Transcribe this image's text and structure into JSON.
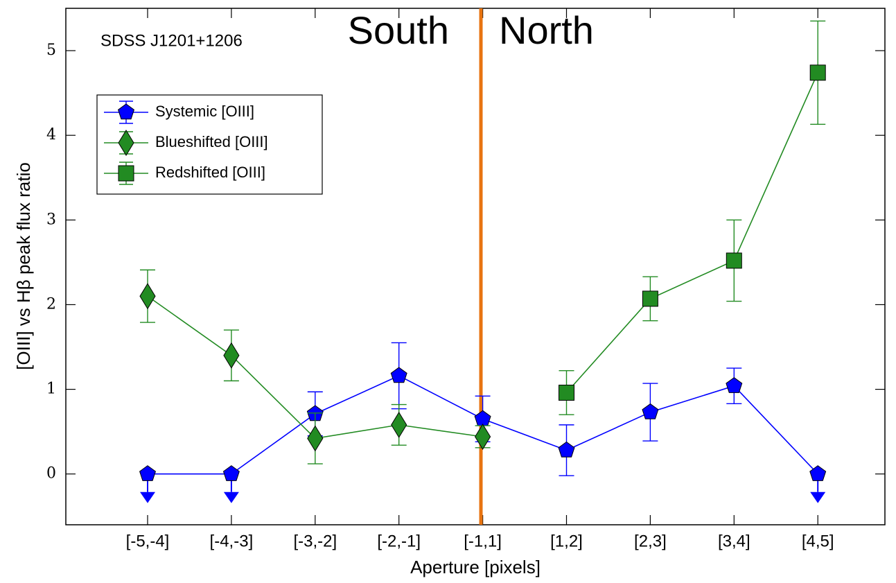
{
  "chart_data": {
    "type": "errorbar-line",
    "annotation": "SDSS J1201+1206",
    "region_labels": [
      "South",
      "North"
    ],
    "xlabel": "Aperture [pixels]",
    "ylabel": "[OIII] vs Hβ peak flux ratio",
    "categories": [
      "[-5,-4]",
      "[-4,-3]",
      "[-3,-2]",
      "[-2,-1]",
      "[-1,1]",
      "[1,2]",
      "[2,3]",
      "[3,4]",
      "[4,5]"
    ],
    "ylim": [
      -0.6,
      5.5
    ],
    "yticks": [
      0,
      1,
      2,
      3,
      4,
      5
    ],
    "divider_color": "#e87410",
    "series": [
      {
        "name": "Systemic [OIII]",
        "color": "#0000ff",
        "marker": "pentagon",
        "values": [
          0,
          0,
          0.71,
          1.16,
          0.65,
          0.28,
          0.73,
          1.04,
          0
        ],
        "errors": [
          null,
          null,
          0.26,
          0.39,
          0.27,
          0.3,
          0.34,
          0.21,
          null
        ],
        "upper_limits": [
          true,
          true,
          false,
          false,
          false,
          false,
          false,
          false,
          true
        ]
      },
      {
        "name": "Blueshifted [OIII]",
        "color": "#228b22",
        "marker": "diamond",
        "values": [
          2.1,
          1.4,
          0.42,
          0.58,
          0.44,
          null,
          null,
          null,
          null
        ],
        "errors": [
          0.31,
          0.3,
          0.3,
          0.24,
          0.13,
          null,
          null,
          null,
          null
        ]
      },
      {
        "name": "Redshifted [OIII]",
        "color": "#228b22",
        "marker": "square",
        "values": [
          null,
          null,
          null,
          null,
          null,
          0.96,
          2.07,
          2.52,
          4.74
        ],
        "errors": [
          null,
          null,
          null,
          null,
          null,
          0.26,
          0.26,
          0.48,
          0.61
        ]
      }
    ]
  }
}
